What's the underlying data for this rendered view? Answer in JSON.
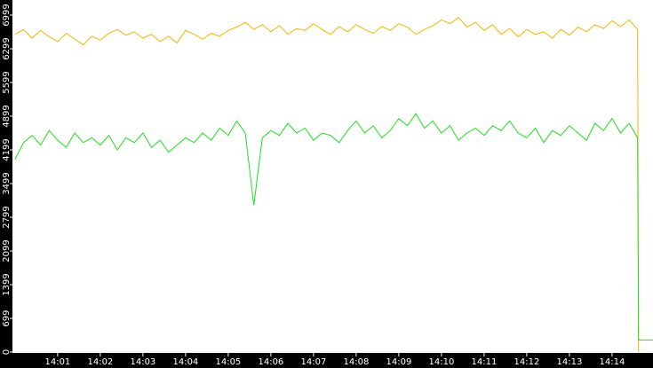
{
  "chart_data": {
    "type": "line",
    "xlim": [
      -0.06,
      14.96
    ],
    "ylim": [
      0,
      7312
    ],
    "xticks": [
      {
        "value": 1,
        "label": "14:01"
      },
      {
        "value": 2,
        "label": "14:02"
      },
      {
        "value": 3,
        "label": "14:03"
      },
      {
        "value": 4,
        "label": "14:04"
      },
      {
        "value": 5,
        "label": "14:05"
      },
      {
        "value": 6,
        "label": "14:06"
      },
      {
        "value": 7,
        "label": "14:07"
      },
      {
        "value": 8,
        "label": "14:08"
      },
      {
        "value": 9,
        "label": "14:09"
      },
      {
        "value": 10,
        "label": "14:10"
      },
      {
        "value": 11,
        "label": "14:11"
      },
      {
        "value": 12,
        "label": "14:12"
      },
      {
        "value": 13,
        "label": "14:13"
      },
      {
        "value": 14,
        "label": "14:14"
      }
    ],
    "yticks": [
      0,
      699,
      1399,
      2099,
      2799,
      3499,
      4199,
      4899,
      5599,
      6299,
      6999
    ],
    "series": [
      {
        "color": "#f2b600",
        "x": [
          0,
          0.2,
          0.4,
          0.6,
          0.8,
          1,
          1.2,
          1.4,
          1.6,
          1.8,
          2,
          2.2,
          2.4,
          2.6,
          2.8,
          3,
          3.2,
          3.4,
          3.6,
          3.8,
          4,
          4.2,
          4.4,
          4.6,
          4.8,
          5,
          5.2,
          5.4,
          5.6,
          5.8,
          6,
          6.2,
          6.4,
          6.6,
          6.8,
          7,
          7.2,
          7.4,
          7.6,
          7.8,
          8,
          8.2,
          8.4,
          8.6,
          8.8,
          9,
          9.2,
          9.4,
          9.6,
          9.8,
          10,
          10.2,
          10.4,
          10.6,
          10.8,
          11,
          11.2,
          11.4,
          11.6,
          11.8,
          12,
          12.2,
          12.4,
          12.6,
          12.8,
          13,
          13.2,
          13.4,
          13.6,
          13.8,
          14,
          14.2,
          14.4,
          14.6,
          14.62
        ],
        "values": [
          6600,
          6700,
          6520,
          6680,
          6550,
          6450,
          6620,
          6500,
          6380,
          6560,
          6480,
          6620,
          6700,
          6580,
          6650,
          6520,
          6600,
          6450,
          6560,
          6420,
          6680,
          6600,
          6500,
          6620,
          6560,
          6680,
          6750,
          6850,
          6700,
          6800,
          6650,
          6780,
          6600,
          6720,
          6680,
          6820,
          6700,
          6600,
          6760,
          6650,
          6800,
          6700,
          6620,
          6760,
          6680,
          6820,
          6750,
          6600,
          6700,
          6780,
          6900,
          6820,
          6950,
          6750,
          6850,
          6680,
          6800,
          6600,
          6720,
          6550,
          6700,
          6600,
          6650,
          6520,
          6700,
          6580,
          6750,
          6650,
          6800,
          6720,
          6880,
          6760,
          6900,
          6700,
          0
        ]
      },
      {
        "color": "#1ee01e",
        "x": [
          0,
          0.2,
          0.4,
          0.6,
          0.8,
          1,
          1.2,
          1.4,
          1.6,
          1.8,
          2,
          2.2,
          2.4,
          2.6,
          2.8,
          3,
          3.2,
          3.4,
          3.6,
          3.8,
          4,
          4.2,
          4.4,
          4.6,
          4.8,
          5,
          5.2,
          5.4,
          5.6,
          5.8,
          6,
          6.2,
          6.4,
          6.6,
          6.8,
          7,
          7.2,
          7.4,
          7.6,
          7.8,
          8,
          8.2,
          8.4,
          8.6,
          8.8,
          9,
          9.2,
          9.4,
          9.6,
          9.8,
          10,
          10.2,
          10.4,
          10.6,
          10.8,
          11,
          11.2,
          11.4,
          11.6,
          11.8,
          12,
          12.2,
          12.4,
          12.6,
          12.8,
          13,
          13.2,
          13.4,
          13.6,
          13.8,
          14,
          14.2,
          14.4,
          14.6,
          14.62,
          14.96
        ],
        "values": [
          4000,
          4350,
          4500,
          4300,
          4600,
          4400,
          4250,
          4550,
          4350,
          4450,
          4300,
          4500,
          4200,
          4450,
          4350,
          4550,
          4250,
          4400,
          4150,
          4300,
          4450,
          4350,
          4550,
          4400,
          4650,
          4500,
          4800,
          4550,
          3050,
          4450,
          4600,
          4500,
          4750,
          4550,
          4650,
          4400,
          4550,
          4500,
          4350,
          4600,
          4800,
          4550,
          4700,
          4450,
          4600,
          4850,
          4700,
          4950,
          4650,
          4800,
          4550,
          4700,
          4400,
          4550,
          4650,
          4500,
          4700,
          4600,
          4800,
          4550,
          4450,
          4650,
          4350,
          4600,
          4500,
          4700,
          4550,
          4400,
          4750,
          4600,
          4850,
          4550,
          4750,
          4450,
          250,
          250
        ]
      }
    ]
  }
}
